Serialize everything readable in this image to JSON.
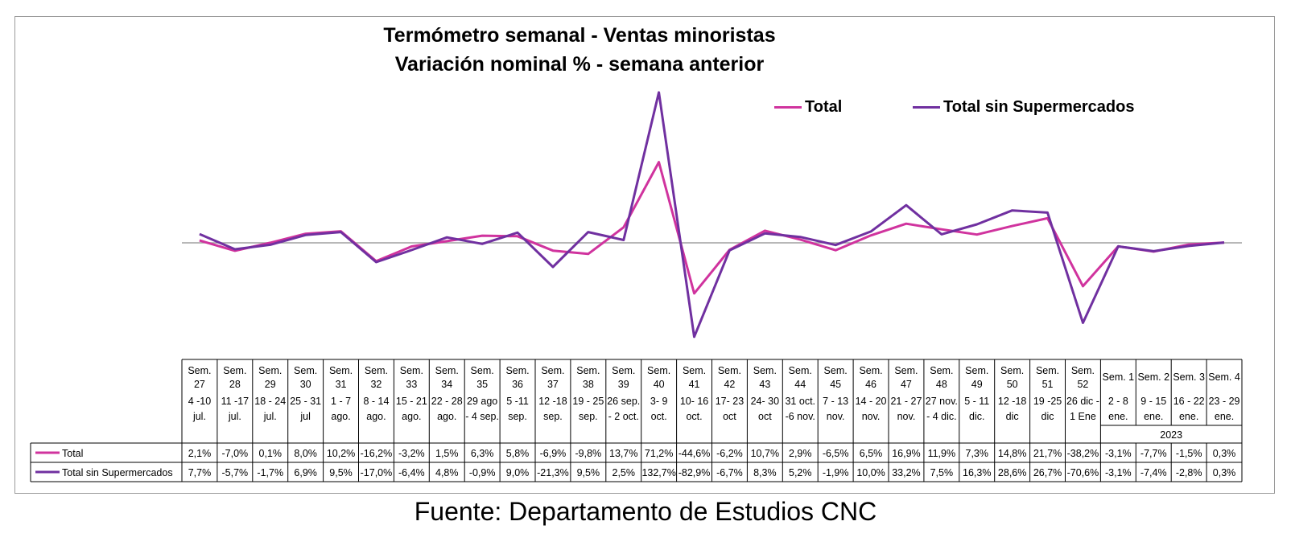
{
  "source": "Fuente: Departamento de Estudios CNC",
  "chart_data": {
    "type": "line",
    "title": "Termómetro semanal - Ventas minoristas",
    "subtitle": "Variación nominal % - semana anterior",
    "legend_position": "top-right",
    "grid": false,
    "x_week_labels": [
      "Sem. 27",
      "Sem. 28",
      "Sem. 29",
      "Sem. 30",
      "Sem. 31",
      "Sem. 32",
      "Sem. 33",
      "Sem. 34",
      "Sem. 35",
      "Sem. 36",
      "Sem. 37",
      "Sem. 38",
      "Sem. 39",
      "Sem. 40",
      "Sem. 41",
      "Sem. 42",
      "Sem. 43",
      "Sem. 44",
      "Sem. 45",
      "Sem. 46",
      "Sem. 47",
      "Sem. 48",
      "Sem. 49",
      "Sem. 50",
      "Sem. 51",
      "Sem. 52",
      "Sem. 1",
      "Sem. 2",
      "Sem. 3",
      "Sem. 4"
    ],
    "x_date_labels": [
      "4 -10 jul.",
      "11 -17 jul.",
      "18 - 24 jul.",
      "25 - 31 jul",
      "1 - 7 ago.",
      "8 - 14 ago.",
      "15 - 21 ago.",
      "22 - 28 ago.",
      "29 ago - 4 sep.",
      "5 -11 sep.",
      "12 -18 sep.",
      "19 - 25 sep.",
      "26 sep. - 2 oct.",
      "3- 9 oct.",
      "10- 16 oct.",
      "17- 23 oct",
      "24- 30 oct",
      "31 oct. -6 nov.",
      "7 - 13 nov.",
      "14 - 20 nov.",
      "21 - 27 nov.",
      "27 nov. - 4 dic.",
      "5 - 11 dic.",
      "12 -18 dic",
      "19 -25 dic",
      "26 dic - 1 Ene",
      "2 - 8 ene.",
      "9 - 15 ene.",
      "16 - 22 ene.",
      "23 - 29 ene."
    ],
    "x_year_label": "2023",
    "series": [
      {
        "name": "Total",
        "color": "#d0339e",
        "values": [
          2.1,
          -7.0,
          0.1,
          8.0,
          10.2,
          -16.2,
          -3.2,
          1.5,
          6.3,
          5.8,
          -6.9,
          -9.8,
          13.7,
          71.2,
          -44.6,
          -6.2,
          10.7,
          2.9,
          -6.5,
          6.5,
          16.9,
          11.9,
          7.3,
          14.8,
          21.7,
          -38.2,
          -3.1,
          -7.7,
          -1.5,
          0.3
        ],
        "labels": [
          "2,1%",
          "-7,0%",
          "0,1%",
          "8,0%",
          "10,2%",
          "-16,2%",
          "-3,2%",
          "1,5%",
          "6,3%",
          "5,8%",
          "-6,9%",
          "-9,8%",
          "13,7%",
          "71,2%",
          "-44,6%",
          "-6,2%",
          "10,7%",
          "2,9%",
          "-6,5%",
          "6,5%",
          "16,9%",
          "11,9%",
          "7,3%",
          "14,8%",
          "21,7%",
          "-38,2%",
          "-3,1%",
          "-7,7%",
          "-1,5%",
          "0,3%"
        ]
      },
      {
        "name": "Total sin Supermercados",
        "color": "#7030a0",
        "values": [
          7.7,
          -5.7,
          -1.7,
          6.9,
          9.5,
          -17.0,
          -6.4,
          4.8,
          -0.9,
          9.0,
          -21.3,
          9.5,
          2.5,
          132.7,
          -82.9,
          -6.7,
          8.3,
          5.2,
          -1.9,
          10.0,
          33.2,
          7.5,
          16.3,
          28.6,
          26.7,
          -70.6,
          -3.1,
          -7.4,
          -2.8,
          0.3
        ],
        "labels": [
          "7,7%",
          "-5,7%",
          "-1,7%",
          "6,9%",
          "9,5%",
          "-17,0%",
          "-6,4%",
          "4,8%",
          "-0,9%",
          "9,0%",
          "-21,3%",
          "9,5%",
          "2,5%",
          "132,7%",
          "-82,9%",
          "-6,7%",
          "8,3%",
          "5,2%",
          "-1,9%",
          "10,0%",
          "33,2%",
          "7,5%",
          "16,3%",
          "28,6%",
          "26,7%",
          "-70,6%",
          "-3,1%",
          "-7,4%",
          "-2,8%",
          "0,3%"
        ]
      }
    ]
  }
}
